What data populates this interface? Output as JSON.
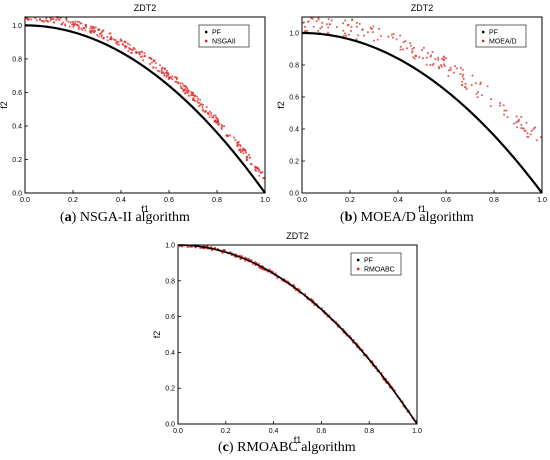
{
  "captions": [
    {
      "letter": "a",
      "text": "NSGA-II algorithm"
    },
    {
      "letter": "b",
      "text": "MOEA/D algorithm"
    },
    {
      "letter": "c",
      "text": "RMOABC algorithm"
    }
  ],
  "chart_data": [
    {
      "type": "scatter",
      "title": "ZDT2",
      "xlabel": "f1",
      "ylabel": "f2",
      "xlim": [
        0,
        1
      ],
      "ylim": [
        0,
        1.05
      ],
      "xticks": [
        "0.0",
        "0.2",
        "0.4",
        "0.6",
        "0.8",
        "1.0"
      ],
      "yticks": [
        "0.0",
        "0.2",
        "0.4",
        "0.6",
        "0.8",
        "1.0"
      ],
      "grid": false,
      "legend_position": "top-right",
      "series": [
        {
          "name": "PF",
          "color": "#000000",
          "model": "f2 = 1 - f1^2",
          "x_start": 0,
          "x_end": 1
        },
        {
          "name": "NSGAII",
          "color": "#e02020",
          "model": "approx f2 = 1.05 - 0.97*f1^2",
          "x_start": 0,
          "x_end": 1
        }
      ]
    },
    {
      "type": "scatter",
      "title": "ZDT2",
      "xlabel": "f1",
      "ylabel": "f2",
      "xlim": [
        0,
        1
      ],
      "ylim": [
        0,
        1.1
      ],
      "xticks": [
        "0.0",
        "0.2",
        "0.4",
        "0.6",
        "0.8",
        "1.0"
      ],
      "yticks": [
        "0.0",
        "0.2",
        "0.4",
        "0.6",
        "0.8",
        "1.0"
      ],
      "grid": false,
      "legend_position": "top-right",
      "series": [
        {
          "name": "PF",
          "color": "#000000",
          "model": "f2 = 1 - f1^2",
          "x_start": 0,
          "x_end": 1
        },
        {
          "name": "MOEA/D",
          "color": "#e02020",
          "model": "scattered approx f2 = 1.06 - 0.75*f1^2",
          "x_start": 0,
          "x_end": 1
        }
      ]
    },
    {
      "type": "scatter",
      "title": "ZDT2",
      "xlabel": "f1",
      "ylabel": "f2",
      "xlim": [
        0,
        1
      ],
      "ylim": [
        0,
        1
      ],
      "xticks": [
        "0.0",
        "0.2",
        "0.4",
        "0.6",
        "0.8",
        "1.0"
      ],
      "yticks": [
        "0.0",
        "0.2",
        "0.4",
        "0.6",
        "0.8",
        "1.0"
      ],
      "grid": false,
      "legend_position": "top-right",
      "series": [
        {
          "name": "PF",
          "color": "#000000",
          "model": "f2 = 1 - f1^2",
          "x_start": 0,
          "x_end": 1
        },
        {
          "name": "RMOABC",
          "color": "#e02020",
          "model": "f2 = 1 - f1^2",
          "x_start": 0,
          "x_end": 1
        }
      ]
    }
  ]
}
